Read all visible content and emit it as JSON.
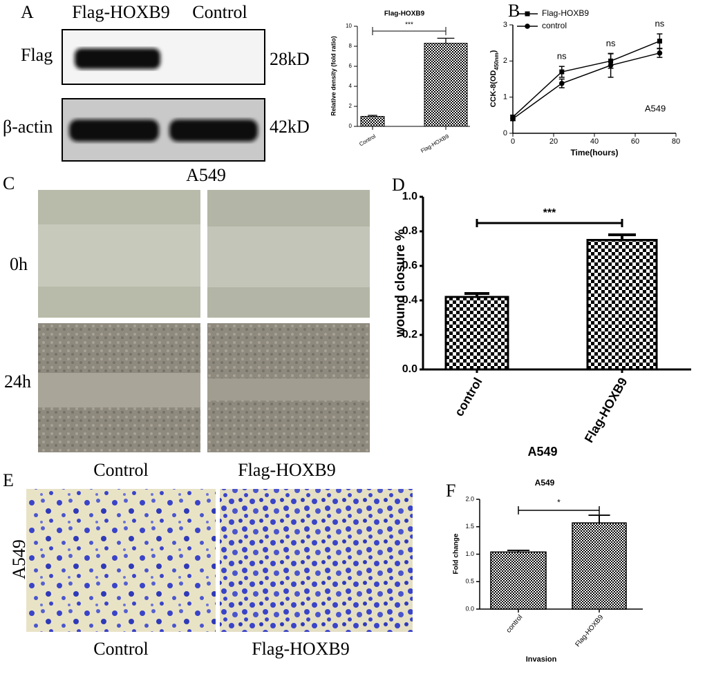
{
  "panel_a": {
    "letter": "A",
    "lanes": [
      "Flag-HOXB9",
      "Control"
    ],
    "rows": [
      "Flag",
      "β-actin"
    ],
    "sizes": [
      "28kD",
      "42kD"
    ]
  },
  "panel_c": {
    "letter": "C",
    "title": "A549",
    "rows": [
      "0h",
      "24h"
    ]
  },
  "panel_e": {
    "letter": "E",
    "top_labels": [
      "Control",
      "Flag-HOXB9"
    ],
    "side_label": "A549",
    "bottom_labels": [
      "Control",
      "Flag-HOXB9"
    ]
  },
  "chart_data": [
    {
      "type": "bar",
      "title": "Flag-HOXB9",
      "y_label": "Relative density (fold ratio)",
      "categories": [
        "Control",
        "Flag-HOXB9"
      ],
      "values": [
        1.0,
        8.3
      ],
      "errors": [
        0.1,
        0.5
      ],
      "ylim": [
        0,
        10
      ],
      "yticks": [
        0,
        2,
        4,
        6,
        8,
        10
      ],
      "annotation": "***"
    },
    {
      "type": "line",
      "panel": "B",
      "y_label": [
        "CCK-8(OD",
        "450nm",
        ")"
      ],
      "x_label": "Time(hours)",
      "x": [
        0,
        24,
        48,
        72
      ],
      "series": [
        {
          "name": "Flag-HOXB9",
          "marker": "square",
          "color": "#000000",
          "values": [
            0.45,
            1.7,
            2.0,
            2.55
          ],
          "errors": [
            0.05,
            0.15,
            0.2,
            0.2
          ]
        },
        {
          "name": "control",
          "marker": "circle",
          "color": "#000000",
          "values": [
            0.4,
            1.38,
            1.88,
            2.22
          ],
          "errors": [
            0.05,
            0.12,
            0.33,
            0.12
          ]
        }
      ],
      "xlim": [
        0,
        80
      ],
      "xticks": [
        0,
        20,
        40,
        60,
        80
      ],
      "ylim": [
        0,
        3
      ],
      "yticks": [
        0,
        1,
        2,
        3
      ],
      "annotations": [
        "ns",
        "ns",
        "ns"
      ],
      "inset_label": "A549"
    },
    {
      "type": "bar",
      "panel": "D",
      "y_label": "wound closure %",
      "x_label": "A549",
      "categories": [
        "control",
        "Flag-HOXB9"
      ],
      "values": [
        0.42,
        0.75
      ],
      "errors": [
        0.02,
        0.03
      ],
      "ylim": [
        0,
        1.0
      ],
      "yticks": [
        {
          "value": 0,
          "label": "0.0"
        },
        {
          "value": 0.2,
          "label": "0.2"
        },
        {
          "value": 0.4,
          "label": "0.4"
        },
        {
          "value": 0.6,
          "label": "0.6"
        },
        {
          "value": 0.8,
          "label": "0.8"
        },
        {
          "value": 1.0,
          "label": "1.0"
        }
      ],
      "annotation": "***"
    },
    {
      "type": "bar",
      "panel": "F",
      "title": "A549",
      "y_label": "Fold change",
      "x_label": "Invasion",
      "categories": [
        "control",
        "Flag-HOXB9"
      ],
      "values": [
        1.04,
        1.57
      ],
      "errors": [
        0.03,
        0.14
      ],
      "ylim": [
        0,
        2.0
      ],
      "yticks": [
        {
          "value": 0,
          "label": "0.0"
        },
        {
          "value": 0.5,
          "label": "0.5"
        },
        {
          "value": 1.0,
          "label": "1.0"
        },
        {
          "value": 1.5,
          "label": "1.5"
        },
        {
          "value": 2.0,
          "label": "2.0"
        }
      ],
      "annotation": "*"
    }
  ]
}
